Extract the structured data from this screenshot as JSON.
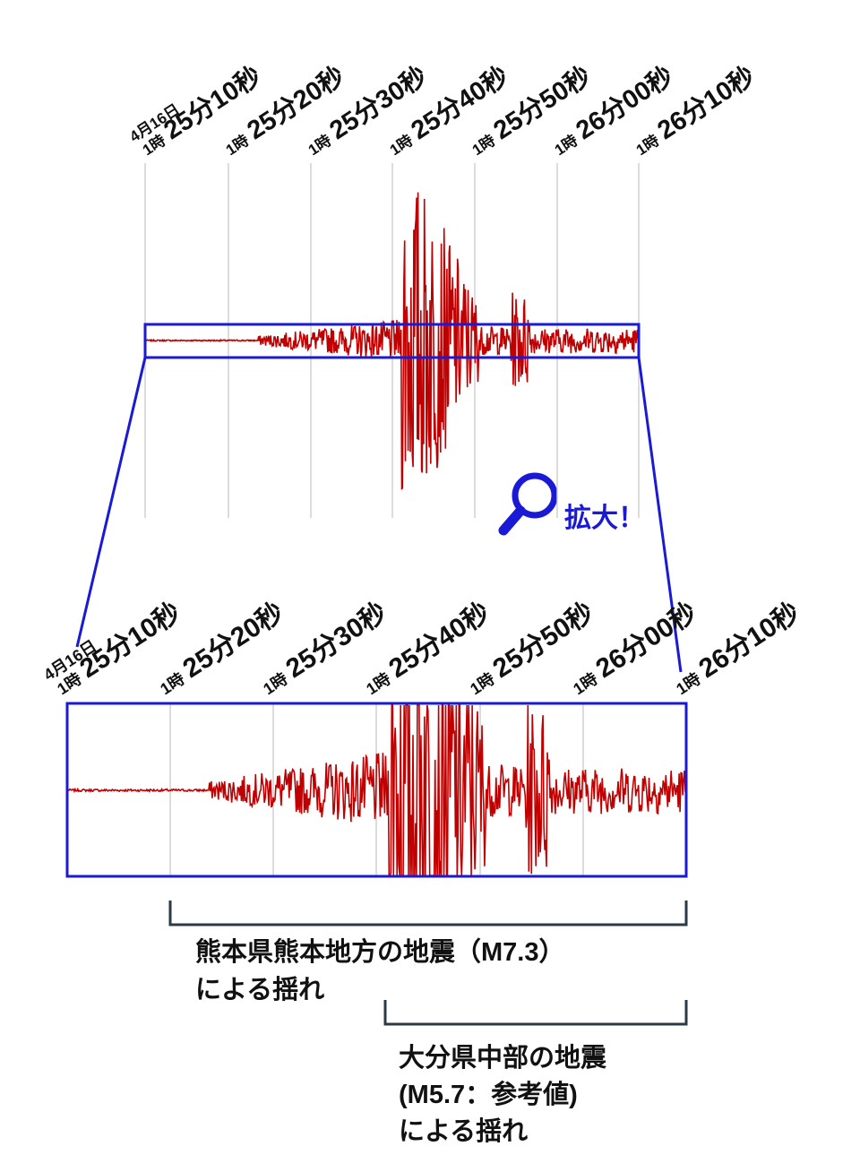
{
  "top_timeline": {
    "date": "4月16日",
    "ticks": [
      {
        "hour": "1時",
        "time": "25分10秒"
      },
      {
        "hour": "1時",
        "time": "25分20秒"
      },
      {
        "hour": "1時",
        "time": "25分30秒"
      },
      {
        "hour": "1時",
        "time": "25分40秒"
      },
      {
        "hour": "1時",
        "time": "25分50秒"
      },
      {
        "hour": "1時",
        "time": "26分00秒"
      },
      {
        "hour": "1時",
        "time": "26分10秒"
      }
    ]
  },
  "bottom_timeline": {
    "date": "4月16日",
    "ticks": [
      {
        "hour": "1時",
        "time": "25分10秒"
      },
      {
        "hour": "1時",
        "time": "25分20秒"
      },
      {
        "hour": "1時",
        "time": "25分30秒"
      },
      {
        "hour": "1時",
        "time": "25分40秒"
      },
      {
        "hour": "1時",
        "time": "25分50秒"
      },
      {
        "hour": "1時",
        "time": "26分00秒"
      },
      {
        "hour": "1時",
        "time": "26分10秒"
      }
    ]
  },
  "zoom_label": "拡大！",
  "brackets": [
    {
      "lines": [
        "熊本県熊本地方の地震（M7.3）",
        "による揺れ"
      ]
    },
    {
      "lines": [
        "大分県中部の地震",
        "(M5.7：参考値)",
        "による揺れ"
      ]
    }
  ]
}
